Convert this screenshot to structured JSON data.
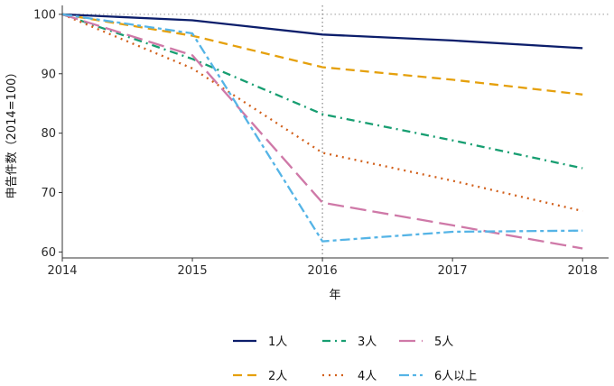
{
  "chart_data": {
    "type": "line",
    "xlabel": "年",
    "ylabel": "申告件数（2014=100）",
    "x": [
      2014,
      2015,
      2016,
      2017,
      2018
    ],
    "xlim": [
      2014,
      2018.2
    ],
    "ylim": [
      59,
      101.5
    ],
    "yticks": [
      60,
      70,
      80,
      90,
      100
    ],
    "reference_lines": {
      "horizontal_y": 100,
      "vertical_x": 2016
    },
    "grid": false,
    "legend_position": "bottom",
    "series": [
      {
        "name": "1人",
        "color": "#0c1e6b",
        "dash": "solid",
        "values": [
          100,
          99.0,
          96.6,
          95.6,
          94.3
        ]
      },
      {
        "name": "2人",
        "color": "#e5a00c",
        "dash": "dashed",
        "values": [
          100,
          96.4,
          91.1,
          89.0,
          86.5
        ]
      },
      {
        "name": "3人",
        "color": "#179e71",
        "dash": "dashdot",
        "values": [
          100,
          92.5,
          83.2,
          78.8,
          74.1
        ]
      },
      {
        "name": "4人",
        "color": "#d2601b",
        "dash": "dotted",
        "values": [
          100,
          90.9,
          76.7,
          72.0,
          66.9
        ]
      },
      {
        "name": "5人",
        "color": "#cf79a8",
        "dash": "longdash",
        "values": [
          100,
          93.1,
          68.3,
          64.5,
          60.6
        ]
      },
      {
        "name": "6人以上",
        "color": "#55b4e6",
        "dash": "twodash",
        "values": [
          100,
          96.8,
          61.8,
          63.4,
          63.6
        ]
      }
    ]
  }
}
